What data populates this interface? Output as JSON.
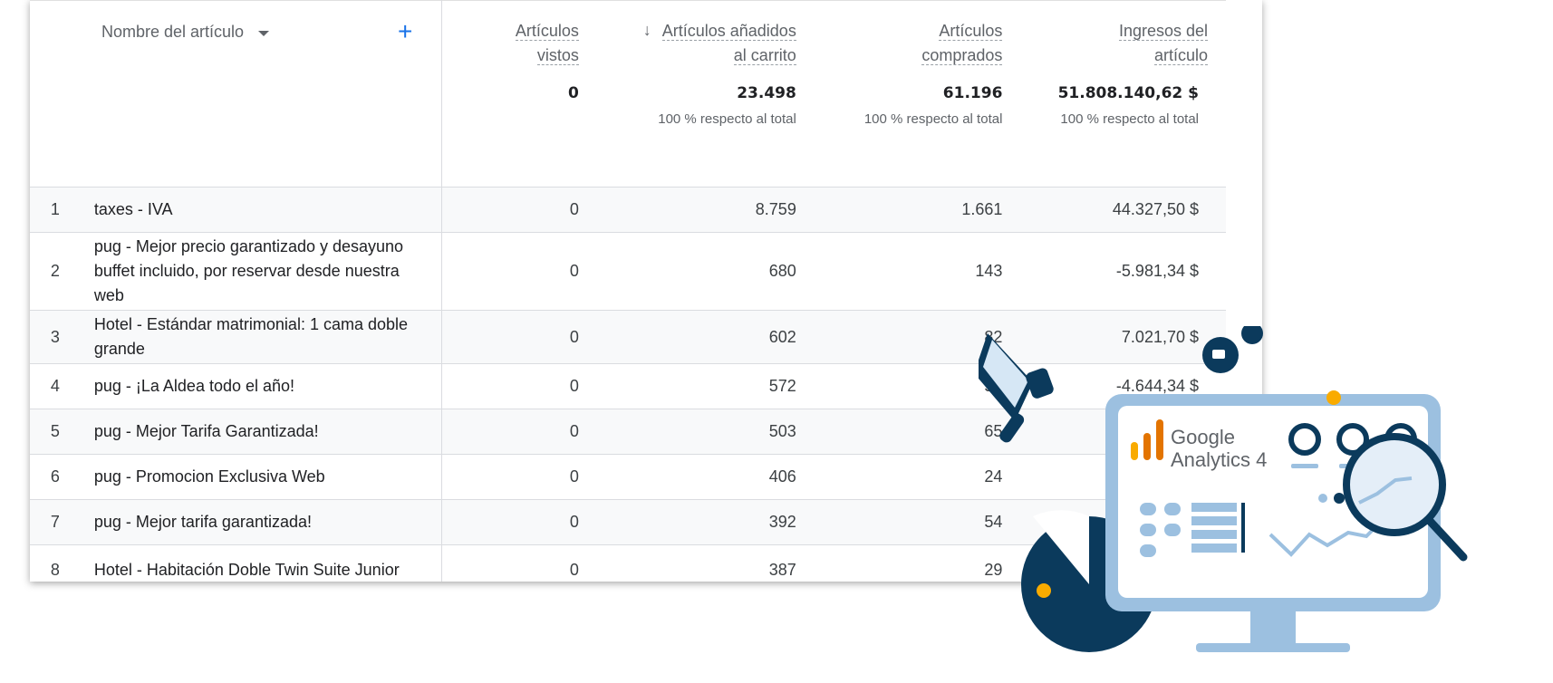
{
  "table": {
    "dimension_label": "Nombre del artículo",
    "add_label": "+",
    "columns": [
      {
        "line1": "Artículos",
        "line2": "vistos",
        "total": "0",
        "pct": ""
      },
      {
        "line1": "Artículos añadidos",
        "line2": "al carrito",
        "total": "23.498",
        "pct": "100 % respecto al total",
        "sorted": true
      },
      {
        "line1": "Artículos",
        "line2": "comprados",
        "total": "61.196",
        "pct": "100 % respecto al total"
      },
      {
        "line1": "Ingresos del",
        "line2": "artículo",
        "total": "51.808.140,62 $",
        "pct": "100 % respecto al total"
      }
    ],
    "rows": [
      {
        "idx": "1",
        "name": "taxes - IVA",
        "vistos": "0",
        "carrito": "8.759",
        "comprados": "1.661",
        "ingresos": "44.327,50 $"
      },
      {
        "idx": "2",
        "name": "pug - Mejor precio garantizado y desayuno buffet incluido, por reservar desde nuestra web",
        "vistos": "0",
        "carrito": "680",
        "comprados": "143",
        "ingresos": "-5.981,34 $"
      },
      {
        "idx": "3",
        "name": "Hotel - Estándar matrimonial: 1 cama doble grande",
        "vistos": "0",
        "carrito": "602",
        "comprados": "82",
        "ingresos": "7.021,70 $"
      },
      {
        "idx": "4",
        "name": "pug - ¡La Aldea todo el año!",
        "vistos": "0",
        "carrito": "572",
        "comprados": "51",
        "ingresos": "-4.644,34 $"
      },
      {
        "idx": "5",
        "name": "pug - Mejor Tarifa Garantizada!",
        "vistos": "0",
        "carrito": "503",
        "comprados": "65",
        "ingresos": ""
      },
      {
        "idx": "6",
        "name": "pug - Promocion Exclusiva Web",
        "vistos": "0",
        "carrito": "406",
        "comprados": "24",
        "ingresos": ""
      },
      {
        "idx": "7",
        "name": "pug - Mejor tarifa garantizada!",
        "vistos": "0",
        "carrito": "392",
        "comprados": "54",
        "ingresos": ""
      },
      {
        "idx": "8",
        "name": "Hotel - Habitación Doble Twin Suite Junior",
        "vistos": "0",
        "carrito": "387",
        "comprados": "29",
        "ingresos": ""
      }
    ]
  },
  "illustration": {
    "logo_line1": "Google",
    "logo_line2": "Analytics 4",
    "icons": [
      "megaphone-icon",
      "thumbs-up-icon",
      "magnifier-icon",
      "monitor-icon",
      "pie-chart-icon"
    ],
    "colors": {
      "navy": "#0b3a5c",
      "light_blue": "#9cc0e0",
      "orange": "#f9ab00",
      "ga_orange": "#e37400",
      "blue": "#1a73e8"
    }
  }
}
